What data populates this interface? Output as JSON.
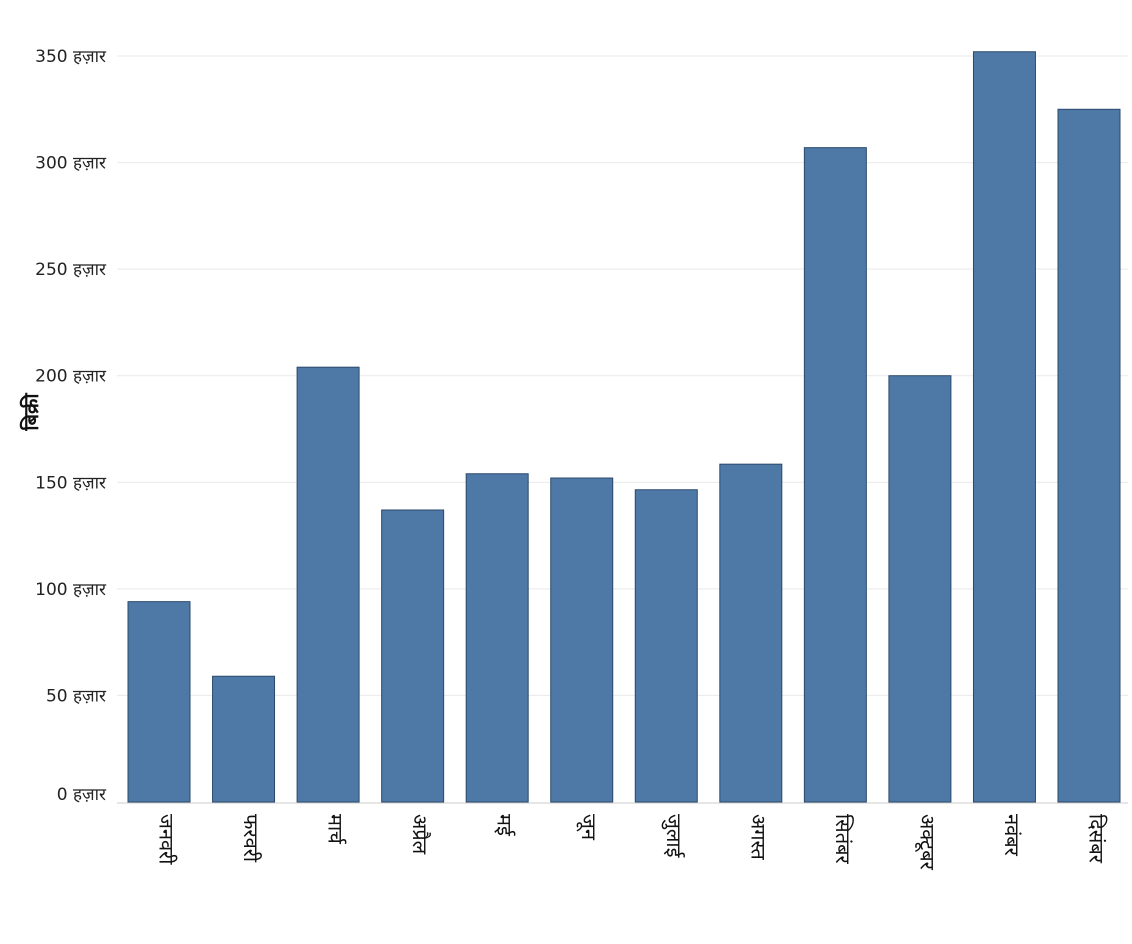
{
  "chart_data": {
    "type": "bar",
    "title": "",
    "xlabel": "",
    "ylabel": "बिक्री",
    "categories": [
      "जनवरी",
      "फरवरी",
      "मार्च",
      "अप्रैल",
      "मई",
      "जून",
      "जुलाई",
      "अगस्त",
      "सितंबर",
      "अक्टूबर",
      "नवंबर",
      "दिसंबर"
    ],
    "values": [
      94000,
      59000,
      204000,
      137000,
      154000,
      152000,
      146500,
      158500,
      307000,
      200000,
      352000,
      325000
    ],
    "ylim": [
      0,
      350000
    ],
    "yticks": [
      {
        "value": 0,
        "label": "0 हज़ार"
      },
      {
        "value": 50000,
        "label": "50 हज़ार"
      },
      {
        "value": 100000,
        "label": "100 हज़ार"
      },
      {
        "value": 150000,
        "label": "150 हज़ार"
      },
      {
        "value": 200000,
        "label": "200 हज़ार"
      },
      {
        "value": 250000,
        "label": "250 हज़ार"
      },
      {
        "value": 300000,
        "label": "300 हज़ार"
      },
      {
        "value": 350000,
        "label": "350 हज़ार"
      }
    ],
    "grid": true,
    "legend": "none",
    "bar_color": "#4e79a7"
  }
}
